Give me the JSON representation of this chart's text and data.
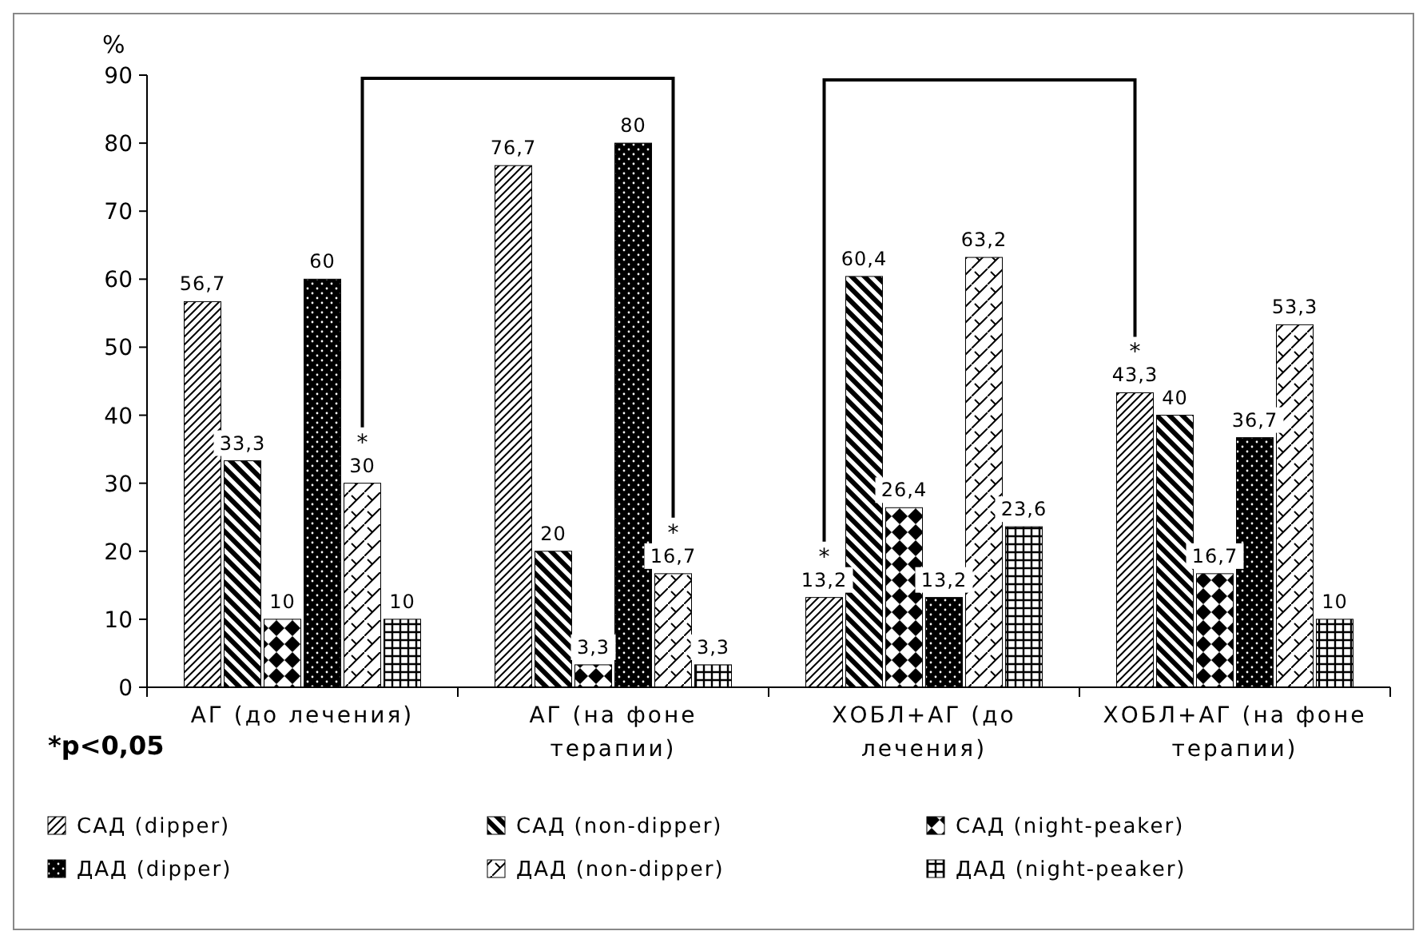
{
  "chart_data": {
    "type": "bar",
    "ylabel": "%",
    "categories": [
      "АГ (до лечения)",
      "АГ (на фоне терапии)",
      "ХОБЛ+АГ (до лечения)",
      "ХОБЛ+АГ (на фоне терапии)"
    ],
    "ylim": [
      0,
      90
    ],
    "yticks": [
      0,
      10,
      20,
      30,
      40,
      50,
      60,
      70,
      80,
      90
    ],
    "grid": false,
    "legend": "bottom",
    "data_labels": false,
    "series": [
      {
        "name": "САД (dipper)",
        "color": "#000000",
        "values": [
          56.7,
          76.7,
          13.2,
          43.3
        ],
        "value_labels": [
          "56,7",
          "76,7",
          "13,2",
          "43,3"
        ]
      },
      {
        "name": "САД (non-dipper)",
        "color": "#000000",
        "values": [
          33.3,
          20,
          60.4,
          40
        ],
        "value_labels": [
          "33,3",
          "20",
          "60,4",
          "40"
        ]
      },
      {
        "name": "САД (night-peaker)",
        "color": "#000000",
        "values": [
          10,
          3.3,
          26.4,
          16.7
        ],
        "value_labels": [
          "10",
          "3,3",
          "26,4",
          "16,7"
        ]
      },
      {
        "name": "ДАД (dipper)",
        "color": "#000000",
        "values": [
          60,
          80,
          13.2,
          36.7
        ],
        "value_labels": [
          "60",
          "80",
          "13,2",
          "36,7"
        ]
      },
      {
        "name": "ДАД (non-dipper)",
        "color": "#000000",
        "values": [
          30,
          16.7,
          63.2,
          53.3
        ],
        "value_labels": [
          "30",
          "16,7",
          "63,2",
          "53,3"
        ]
      },
      {
        "name": "ДАД (night-peaker)",
        "color": "#000000",
        "values": [
          10,
          3.3,
          23.6,
          10
        ],
        "value_labels": [
          "10",
          "3,3",
          "23,6",
          "10"
        ]
      }
    ],
    "annotations": [
      "*",
      "*",
      "*",
      "*",
      "*p<0,05"
    ]
  }
}
